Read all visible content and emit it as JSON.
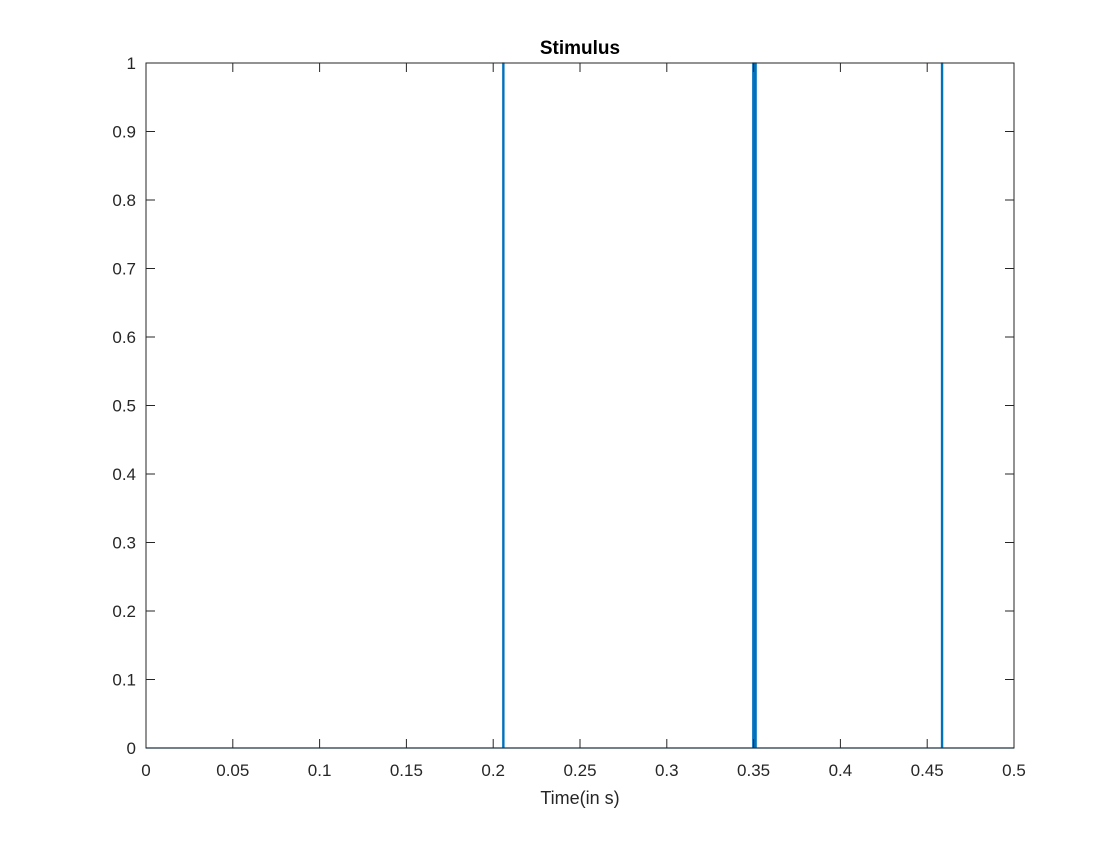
{
  "chart_data": {
    "type": "line",
    "title": "Stimulus",
    "xlabel": "Time(in s)",
    "ylabel": "",
    "xlim": [
      0,
      0.5
    ],
    "ylim": [
      0,
      1
    ],
    "xticks": [
      0,
      0.05,
      0.1,
      0.15,
      0.2,
      0.25,
      0.3,
      0.35,
      0.4,
      0.45,
      0.5
    ],
    "xtick_labels": [
      "0",
      "0.05",
      "0.1",
      "0.15",
      "0.2",
      "0.25",
      "0.3",
      "0.35",
      "0.4",
      "0.45",
      "0.5"
    ],
    "yticks": [
      0,
      0.1,
      0.2,
      0.3,
      0.4,
      0.5,
      0.6,
      0.7,
      0.8,
      0.9,
      1
    ],
    "ytick_labels": [
      "0",
      "0.1",
      "0.2",
      "0.3",
      "0.4",
      "0.5",
      "0.6",
      "0.7",
      "0.8",
      "0.9",
      "1"
    ],
    "grid": false,
    "legend": "none",
    "series": [
      {
        "color": "#0072BD",
        "x": [
          0,
          0.2055,
          0.2055,
          0.2062,
          0.2062,
          0.3495,
          0.3495,
          0.3502,
          0.3502,
          0.3508,
          0.3508,
          0.3515,
          0.3515,
          0.4582,
          0.4582,
          0.4589,
          0.4589,
          0.5
        ],
        "values": [
          0,
          0,
          1,
          1,
          0,
          0,
          1,
          1,
          0,
          0,
          1,
          1,
          0,
          0,
          1,
          1,
          0,
          0
        ]
      }
    ]
  }
}
